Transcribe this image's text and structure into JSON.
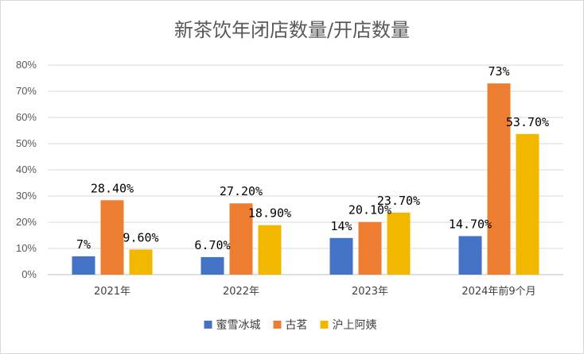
{
  "chart_data": {
    "type": "bar",
    "title": "新茶饮年闭店数量/开店数量",
    "xlabel": "",
    "ylabel": "",
    "ylim": [
      0,
      80
    ],
    "y_ticks": [
      "0%",
      "10%",
      "20%",
      "30%",
      "40%",
      "50%",
      "60%",
      "70%",
      "80%"
    ],
    "categories": [
      "2021年",
      "2022年",
      "2023年",
      "2024年前9个月"
    ],
    "series": [
      {
        "name": "蜜雪冰城",
        "color": "#4472c4",
        "values": [
          7,
          6.7,
          14,
          14.7
        ],
        "labels": [
          "7%",
          "6.70%",
          "14%",
          "14.70%"
        ]
      },
      {
        "name": "古茗",
        "color": "#ed7d31",
        "values": [
          28.4,
          27.2,
          20.1,
          73
        ],
        "labels": [
          "28.40%",
          "27.20%",
          "20.10%",
          "73%"
        ]
      },
      {
        "name": "沪上阿姨",
        "color": "#f2b800",
        "values": [
          9.6,
          18.9,
          23.7,
          53.7
        ],
        "labels": [
          "9.60%",
          "18.90%",
          "23.70%",
          "53.70%"
        ]
      }
    ],
    "grid": true,
    "legend_position": "bottom"
  }
}
